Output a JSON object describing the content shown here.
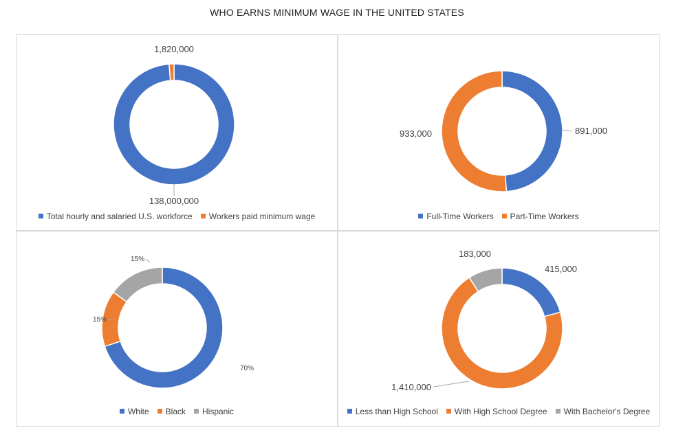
{
  "title": "WHO EARNS MINIMUM WAGE IN THE UNITED STATES",
  "colors": {
    "blue": "#4472c4",
    "orange": "#ed7d31",
    "gray": "#a5a5a5"
  },
  "chart_data": [
    {
      "type": "pie",
      "hole": true,
      "categories": [
        "Total hourly and salaried U.S. workforce",
        "Workers paid minimum wage"
      ],
      "values": [
        138000000,
        1820000
      ],
      "data_labels": [
        "138,000,000",
        "1,820,000"
      ],
      "colors": [
        "#4472c4",
        "#ed7d31"
      ],
      "legend": "bottom"
    },
    {
      "type": "pie",
      "hole": true,
      "categories": [
        "Full-Time Workers",
        "Part-Time Workers"
      ],
      "values": [
        891000,
        933000
      ],
      "data_labels": [
        "891,000",
        "933,000"
      ],
      "colors": [
        "#4472c4",
        "#ed7d31"
      ],
      "legend": "bottom"
    },
    {
      "type": "pie",
      "hole": true,
      "categories": [
        "White",
        "Black",
        "Hispanic"
      ],
      "values": [
        70,
        15,
        15
      ],
      "data_labels": [
        "70%",
        "15%",
        "15%"
      ],
      "colors": [
        "#4472c4",
        "#ed7d31",
        "#a5a5a5"
      ],
      "legend": "bottom"
    },
    {
      "type": "pie",
      "hole": true,
      "categories": [
        "Less than High School",
        "With High School Degree",
        "With Bachelor's Degree"
      ],
      "values": [
        415000,
        1410000,
        183000
      ],
      "data_labels": [
        "415,000",
        "1,410,000",
        "183,000"
      ],
      "colors": [
        "#4472c4",
        "#ed7d31",
        "#a5a5a5"
      ],
      "legend": "bottom"
    }
  ]
}
